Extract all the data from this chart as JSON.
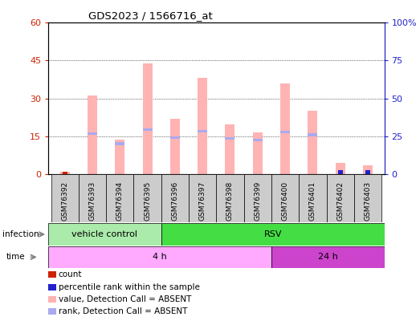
{
  "title": "GDS2023 / 1566716_at",
  "samples": [
    "GSM76392",
    "GSM76393",
    "GSM76394",
    "GSM76395",
    "GSM76396",
    "GSM76397",
    "GSM76398",
    "GSM76399",
    "GSM76400",
    "GSM76401",
    "GSM76402",
    "GSM76403"
  ],
  "pink_bars": [
    0.8,
    31.0,
    13.5,
    44.0,
    22.0,
    38.0,
    19.5,
    16.5,
    36.0,
    25.0,
    4.5,
    3.5
  ],
  "blue_segment_bottom": [
    0.0,
    15.5,
    11.5,
    17.0,
    14.0,
    16.5,
    13.5,
    13.0,
    16.0,
    15.0,
    0.0,
    0.0
  ],
  "blue_segment_height": [
    0.0,
    1.0,
    1.0,
    1.0,
    1.0,
    1.0,
    1.0,
    1.0,
    1.0,
    1.0,
    0.0,
    0.0
  ],
  "red_bar_height": [
    1.0,
    0.0,
    0.0,
    0.0,
    0.0,
    0.0,
    0.0,
    0.0,
    0.0,
    0.0,
    0.0,
    0.0
  ],
  "blue_dot_height": [
    0.0,
    0.0,
    0.0,
    0.0,
    0.0,
    0.0,
    0.0,
    0.0,
    0.0,
    0.0,
    1.5,
    1.5
  ],
  "left_ylim": [
    0,
    60
  ],
  "right_ylim": [
    0,
    100
  ],
  "left_yticks": [
    0,
    15,
    30,
    45,
    60
  ],
  "right_yticks": [
    0,
    25,
    50,
    75,
    100
  ],
  "left_ytick_labels": [
    "0",
    "15",
    "30",
    "45",
    "60"
  ],
  "right_ytick_labels": [
    "0",
    "25",
    "50",
    "75",
    "100%"
  ],
  "pink_color": "#ffb3b3",
  "blue_segment_color": "#aaaaee",
  "red_bar_color": "#cc2200",
  "blue_dot_color": "#2222cc",
  "infection_vc_color": "#aaeaaa",
  "infection_rsv_color": "#44dd44",
  "time_4h_color": "#ffaaff",
  "time_24h_color": "#cc44cc",
  "xticklabel_bg": "#cccccc",
  "legend_items": [
    {
      "color": "#cc2200",
      "label": "count"
    },
    {
      "color": "#2222cc",
      "label": "percentile rank within the sample"
    },
    {
      "color": "#ffb3b3",
      "label": "value, Detection Call = ABSENT"
    },
    {
      "color": "#aaaaee",
      "label": "rank, Detection Call = ABSENT"
    }
  ]
}
